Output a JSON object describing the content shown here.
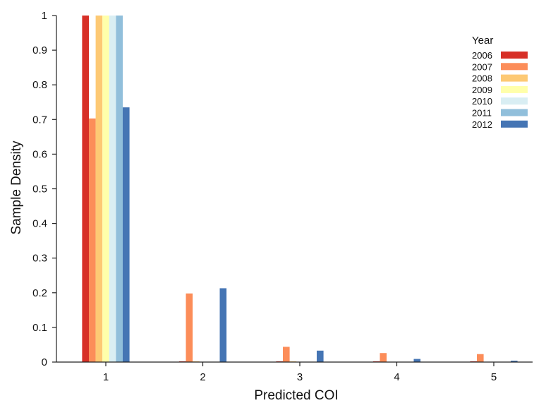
{
  "chart_data": {
    "type": "bar",
    "xlabel": "Predicted COI",
    "ylabel": "Sample Density",
    "categories": [
      "1",
      "2",
      "3",
      "4",
      "5"
    ],
    "yticks": [
      "0",
      "0.1",
      "0.2",
      "0.3",
      "0.4",
      "0.5",
      "0.6",
      "0.7",
      "0.8",
      "0.9",
      "1"
    ],
    "ylim": [
      0,
      1
    ],
    "grid": false,
    "legend": {
      "title": "Year",
      "position": "top-right"
    },
    "series": [
      {
        "name": "2006",
        "color": "#d73027",
        "values": [
          1.0,
          0.002,
          0.002,
          0.002,
          0.002
        ]
      },
      {
        "name": "2007",
        "color": "#fc8d59",
        "values": [
          0.703,
          0.198,
          0.044,
          0.026,
          0.023
        ]
      },
      {
        "name": "2008",
        "color": "#fdc974",
        "values": [
          1.0,
          0.002,
          0.002,
          0.0,
          0.0
        ]
      },
      {
        "name": "2009",
        "color": "#ffffaa",
        "values": [
          1.0,
          0.0,
          0.0,
          0.0,
          0.0
        ]
      },
      {
        "name": "2010",
        "color": "#d9eef3",
        "values": [
          1.0,
          0.0,
          0.0,
          0.0,
          0.0
        ]
      },
      {
        "name": "2011",
        "color": "#91bfdb",
        "values": [
          1.0,
          0.0,
          0.0,
          0.0,
          0.0
        ]
      },
      {
        "name": "2012",
        "color": "#4575b4",
        "values": [
          0.735,
          0.213,
          0.033,
          0.009,
          0.004
        ]
      }
    ]
  }
}
